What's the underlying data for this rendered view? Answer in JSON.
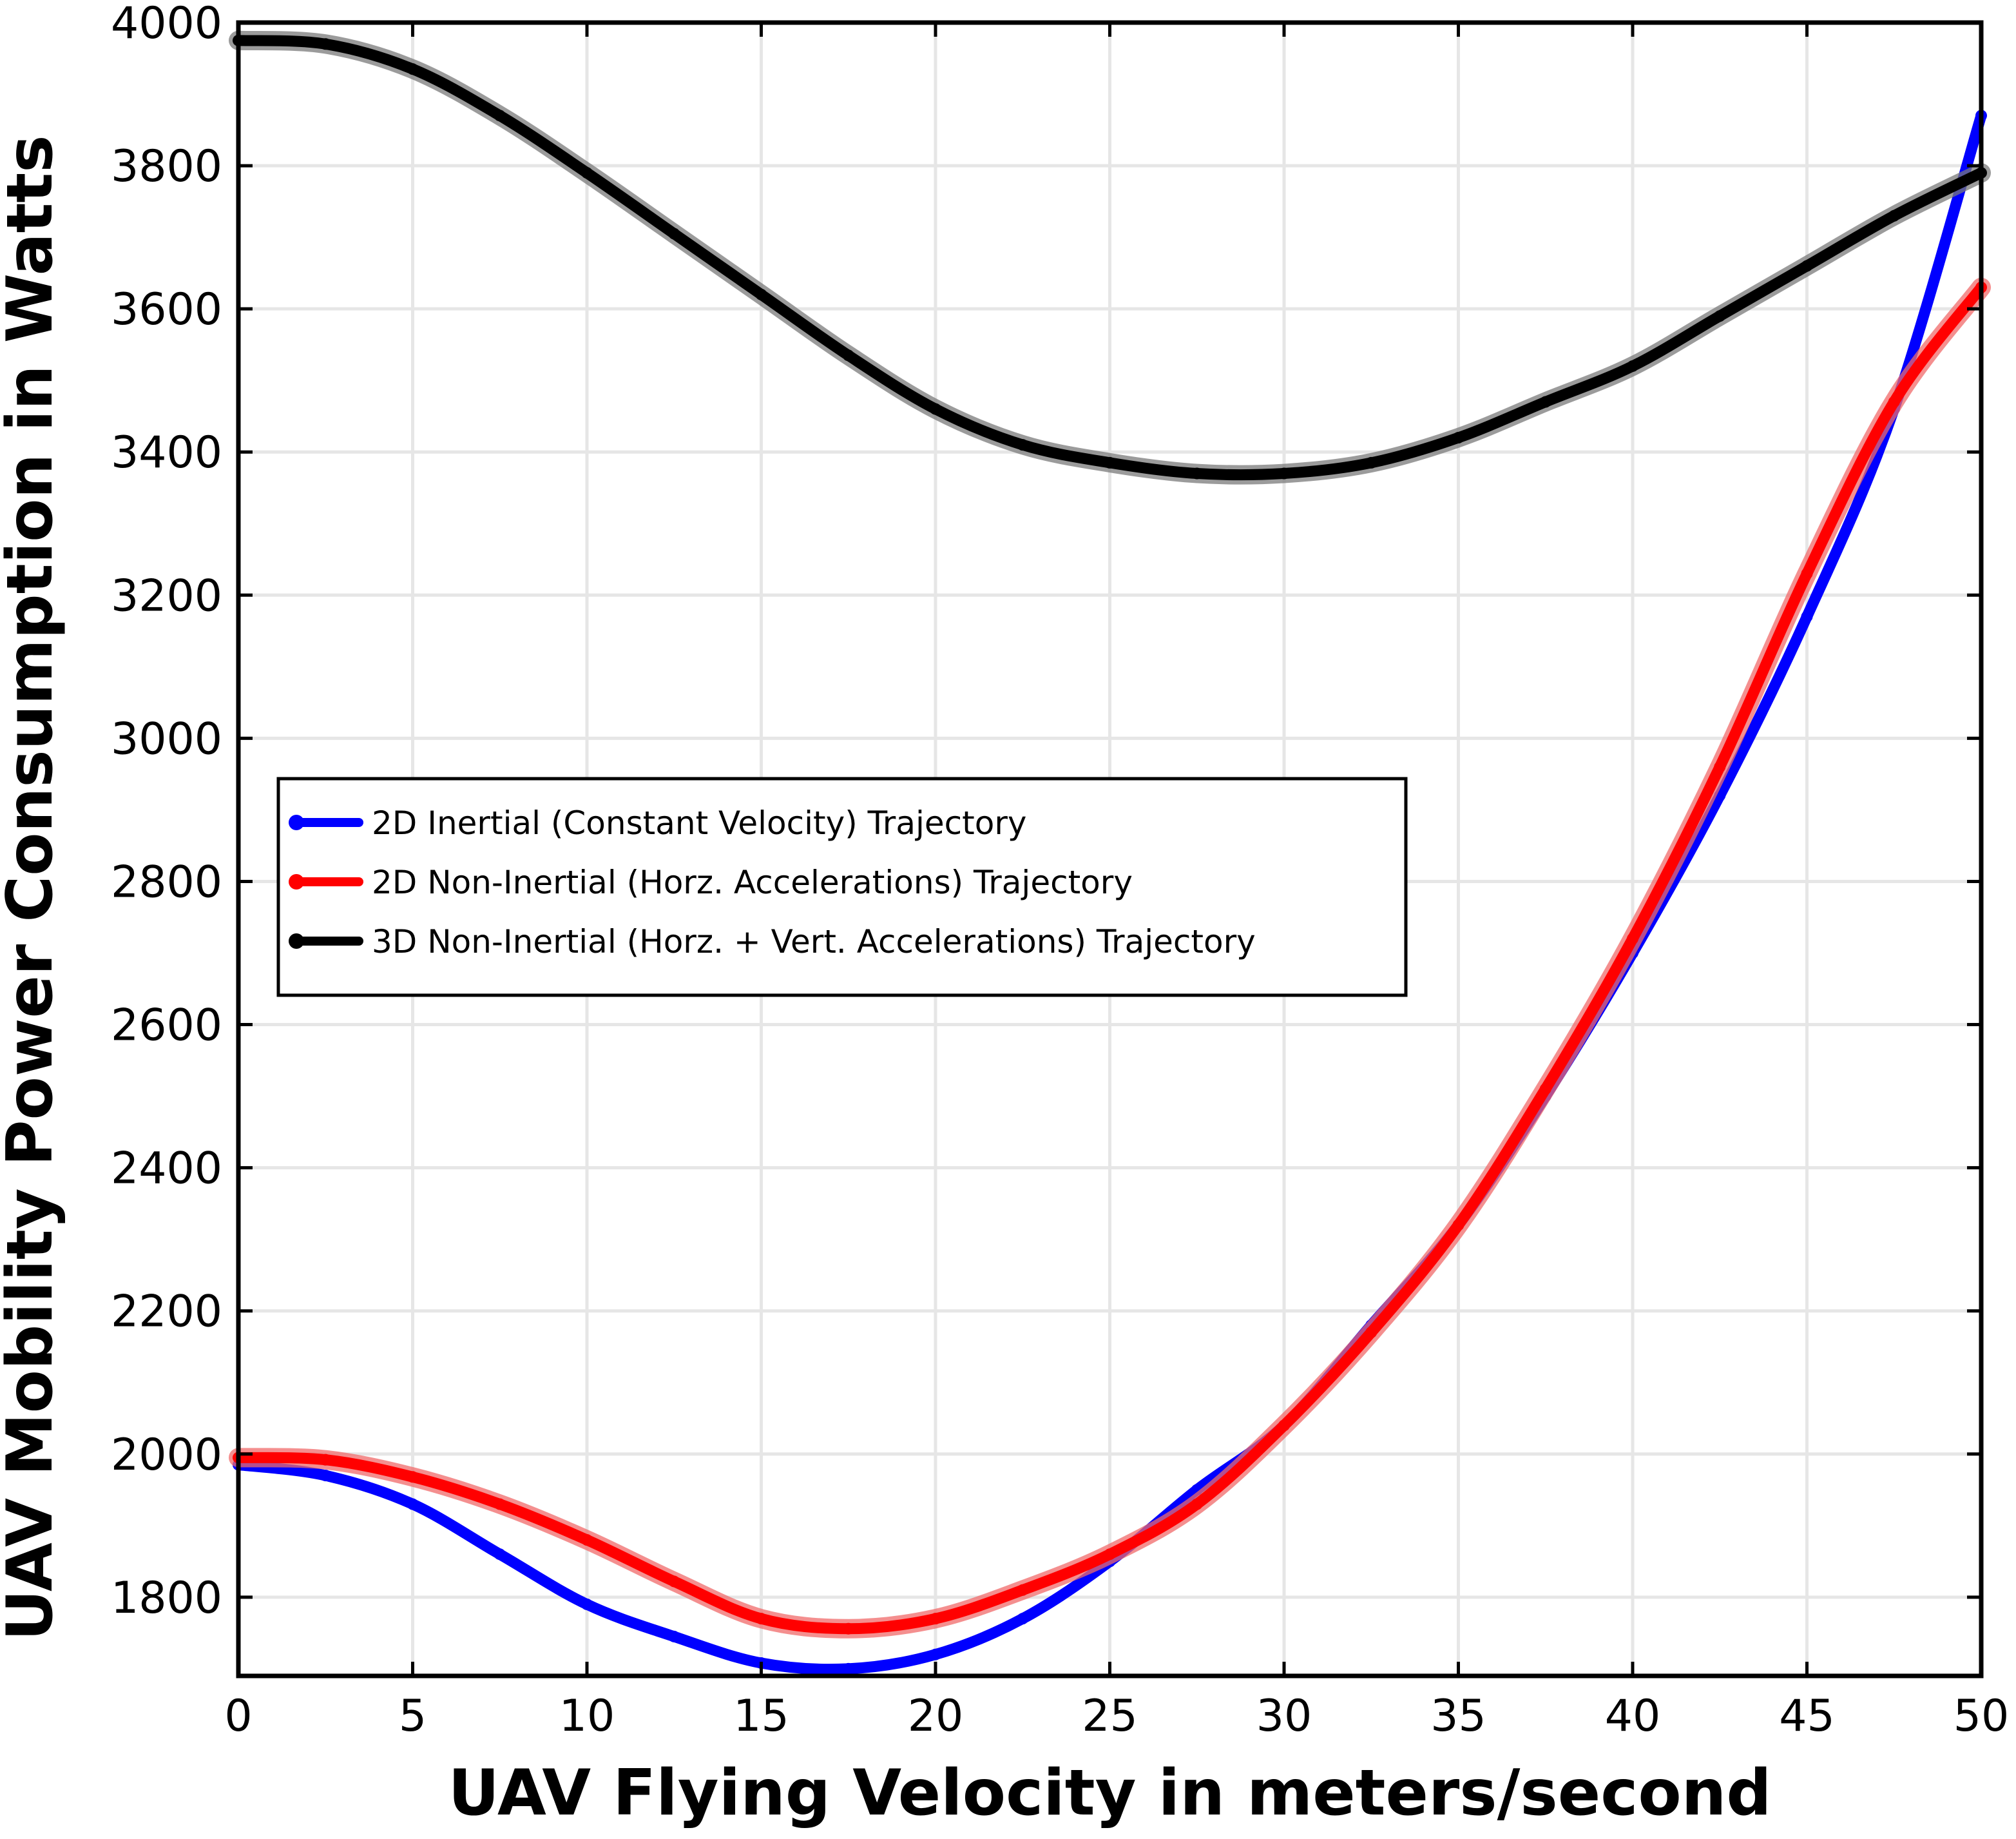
{
  "chart_data": {
    "type": "line",
    "xlabel": "UAV Flying Velocity in meters/second",
    "ylabel": "UAV Mobility Power Consumption in Watts",
    "xlim": [
      0,
      50
    ],
    "ylim": [
      1690,
      4000
    ],
    "x_ticks": [
      0,
      5,
      10,
      15,
      20,
      25,
      30,
      35,
      40,
      45,
      50
    ],
    "y_ticks": [
      1800,
      2000,
      2200,
      2400,
      2600,
      2800,
      3000,
      3200,
      3400,
      3600,
      3800,
      4000
    ],
    "grid": true,
    "legend_position": "center-left",
    "x": [
      0,
      2.5,
      5,
      7.5,
      10,
      12.5,
      15,
      17.5,
      20,
      22.5,
      25,
      27.5,
      30,
      32.5,
      35,
      37.5,
      40,
      42.5,
      45,
      47.5,
      50
    ],
    "series": [
      {
        "name": "2D Inertial (Constant Velocity) Trajectory",
        "color": "#0000ff",
        "values": [
          1985,
          1970,
          1930,
          1860,
          1790,
          1745,
          1708,
          1700,
          1720,
          1770,
          1850,
          1950,
          2040,
          2180,
          2320,
          2500,
          2700,
          2920,
          3170,
          3460,
          3870
        ]
      },
      {
        "name": "2D Non-Inertial (Horz. Accelerations) Trajectory",
        "color": "#ff0000",
        "values": [
          1995,
          1992,
          1968,
          1930,
          1880,
          1822,
          1770,
          1756,
          1770,
          1810,
          1860,
          1930,
          2040,
          2170,
          2320,
          2510,
          2720,
          2960,
          3230,
          3470,
          3630
        ]
      },
      {
        "name": "3D Non-Inertial (Horz. + Vert. Accelerations) Trajectory",
        "color": "#000000",
        "values": [
          3975,
          3970,
          3935,
          3870,
          3790,
          3705,
          3620,
          3535,
          3460,
          3410,
          3385,
          3370,
          3370,
          3385,
          3420,
          3470,
          3520,
          3590,
          3660,
          3730,
          3790
        ]
      }
    ]
  }
}
